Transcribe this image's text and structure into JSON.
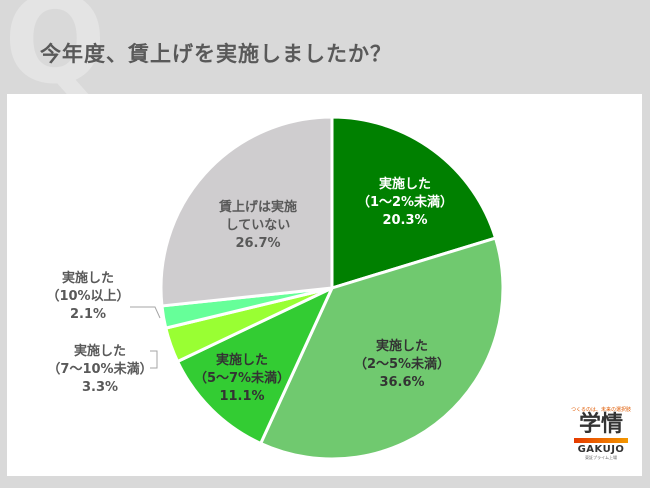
{
  "header": {
    "q_mark": "Q",
    "title": "今年度、賃上げを実施しましたか？"
  },
  "chart_data": {
    "type": "pie",
    "title": "今年度、賃上げを実施しましたか？",
    "start_angle_deg": 0,
    "direction": "clockwise",
    "slices": [
      {
        "label": "実施した（1〜2%未満）",
        "line1": "実施した",
        "line2": "（1〜2%未満）",
        "value": 20.3,
        "value_text": "20.3%",
        "color": "#008000"
      },
      {
        "label": "実施した（2〜5%未満）",
        "line1": "実施した",
        "line2": "（2〜5%未満）",
        "value": 36.6,
        "value_text": "36.6%",
        "color": "#70c96f"
      },
      {
        "label": "実施した（5〜7%未満）",
        "line1": "実施した",
        "line2": "（5〜7%未満）",
        "value": 11.1,
        "value_text": "11.1%",
        "color": "#33cc33"
      },
      {
        "label": "実施した（7〜10%未満）",
        "line1": "実施した",
        "line2": "（7〜10%未満）",
        "value": 3.3,
        "value_text": "3.3%",
        "color": "#99ff33"
      },
      {
        "label": "実施した（10%以上）",
        "line1": "実施した",
        "line2": "（10%以上）",
        "value": 2.1,
        "value_text": "2.1%",
        "color": "#66ff99"
      },
      {
        "label": "賃上げは実施していない",
        "line1": "賃上げは実施",
        "line2": "していない",
        "value": 26.7,
        "value_text": "26.7%",
        "color": "#cfcdcf"
      }
    ],
    "legend": "none (data labels on slices)",
    "colors": {
      "separator": "#ffffff",
      "leader_line": "#a6a6a6"
    }
  },
  "logo": {
    "tagline": "つくるのは、未来の選択肢",
    "kanji": "学情",
    "en": "GAKUJO",
    "sub": "東証プライム上場"
  }
}
